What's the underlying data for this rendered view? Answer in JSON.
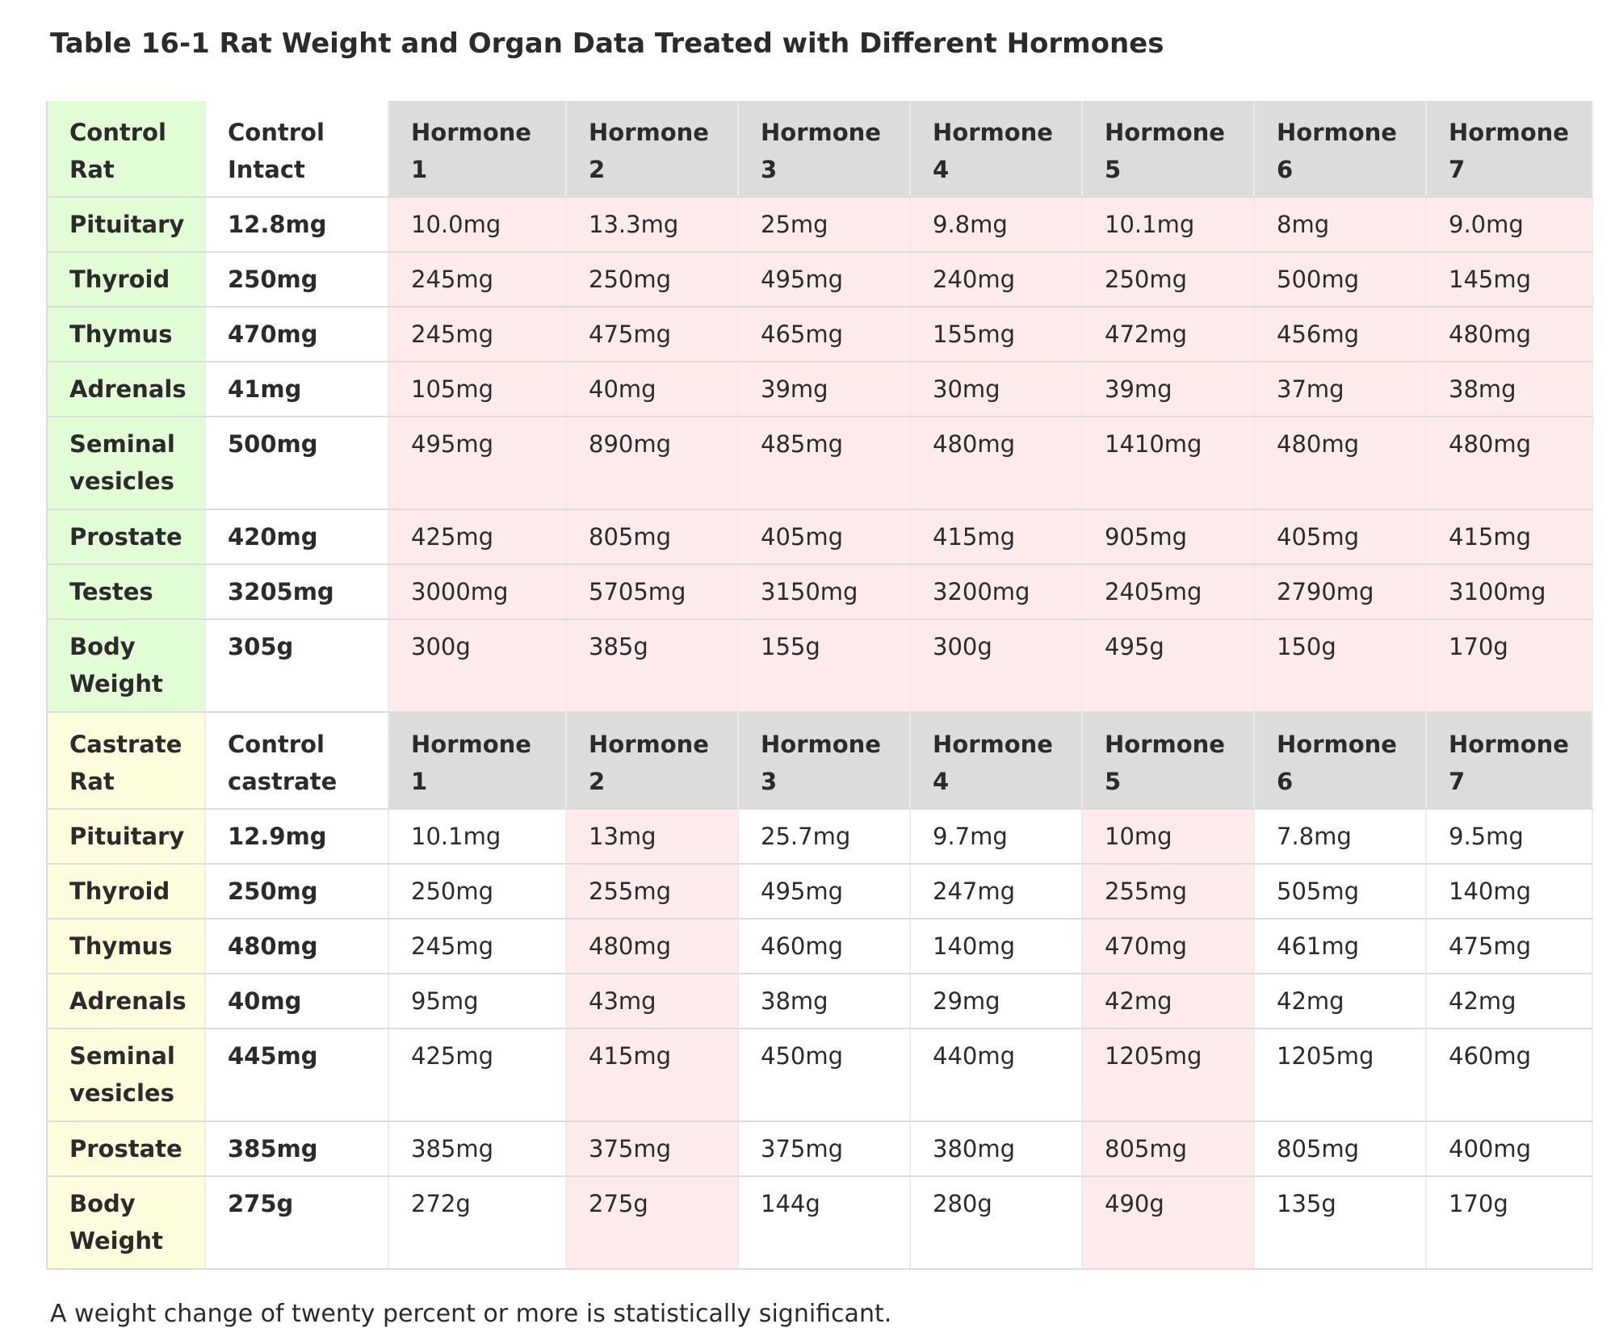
{
  "caption": "Table 16-1 Rat Weight and Organ Data Treated with Different Hormones",
  "hormones": [
    "Hormone 1",
    "Hormone 2",
    "Hormone 3",
    "Hormone 4",
    "Hormone 5",
    "Hormone 6",
    "Hormone 7"
  ],
  "control": {
    "corner": "Control Rat",
    "control_label": "Control Intact",
    "rows": [
      {
        "organ": "Pituitary",
        "control": "12.8mg",
        "values": [
          "10.0mg",
          "13.3mg",
          "25mg",
          "9.8mg",
          "10.1mg",
          "8mg",
          "9.0mg"
        ]
      },
      {
        "organ": "Thyroid",
        "control": "250mg",
        "values": [
          "245mg",
          "250mg",
          "495mg",
          "240mg",
          "250mg",
          "500mg",
          "145mg"
        ]
      },
      {
        "organ": "Thymus",
        "control": "470mg",
        "values": [
          "245mg",
          "475mg",
          "465mg",
          "155mg",
          "472mg",
          "456mg",
          "480mg"
        ]
      },
      {
        "organ": "Adrenals",
        "control": "41mg",
        "values": [
          "105mg",
          "40mg",
          "39mg",
          "30mg",
          "39mg",
          "37mg",
          "38mg"
        ]
      },
      {
        "organ": "Seminal vesicles",
        "control": "500mg",
        "values": [
          "495mg",
          "890mg",
          "485mg",
          "480mg",
          "1410mg",
          "480mg",
          "480mg"
        ]
      },
      {
        "organ": "Prostate",
        "control": "420mg",
        "values": [
          "425mg",
          "805mg",
          "405mg",
          "415mg",
          "905mg",
          "405mg",
          "415mg"
        ]
      },
      {
        "organ": "Testes",
        "control": "3205mg",
        "values": [
          "3000mg",
          "5705mg",
          "3150mg",
          "3200mg",
          "2405mg",
          "2790mg",
          "3100mg"
        ]
      },
      {
        "organ": "Body Weight",
        "control": "305g",
        "values": [
          "300g",
          "385g",
          "155g",
          "300g",
          "495g",
          "150g",
          "170g"
        ]
      }
    ]
  },
  "castrate": {
    "corner": "Castrate Rat",
    "control_label": "Control castrate",
    "rows": [
      {
        "organ": "Pituitary",
        "control": "12.9mg",
        "values": [
          "10.1mg",
          "13mg",
          "25.7mg",
          "9.7mg",
          "10mg",
          "7.8mg",
          "9.5mg"
        ]
      },
      {
        "organ": "Thyroid",
        "control": "250mg",
        "values": [
          "250mg",
          "255mg",
          "495mg",
          "247mg",
          "255mg",
          "505mg",
          "140mg"
        ]
      },
      {
        "organ": "Thymus",
        "control": "480mg",
        "values": [
          "245mg",
          "480mg",
          "460mg",
          "140mg",
          "470mg",
          "461mg",
          "475mg"
        ]
      },
      {
        "organ": "Adrenals",
        "control": "40mg",
        "values": [
          "95mg",
          "43mg",
          "38mg",
          "29mg",
          "42mg",
          "42mg",
          "42mg"
        ]
      },
      {
        "organ": "Seminal vesicles",
        "control": "445mg",
        "values": [
          "425mg",
          "415mg",
          "450mg",
          "440mg",
          "1205mg",
          "1205mg",
          "460mg"
        ]
      },
      {
        "organ": "Prostate",
        "control": "385mg",
        "values": [
          "385mg",
          "375mg",
          "375mg",
          "380mg",
          "805mg",
          "805mg",
          "400mg"
        ]
      },
      {
        "organ": "Body Weight",
        "control": "275g",
        "values": [
          "272g",
          "275g",
          "144g",
          "280g",
          "490g",
          "135g",
          "170g"
        ]
      }
    ]
  },
  "colors": {
    "control_label_bg": "#e2fcd6",
    "castrate_label_bg": "#fdfddd",
    "hormone_header_bg": "#dcdcdc",
    "highlight_bg": "#fdeaea"
  },
  "footnote": "A weight change of twenty percent or more is statistically significant."
}
